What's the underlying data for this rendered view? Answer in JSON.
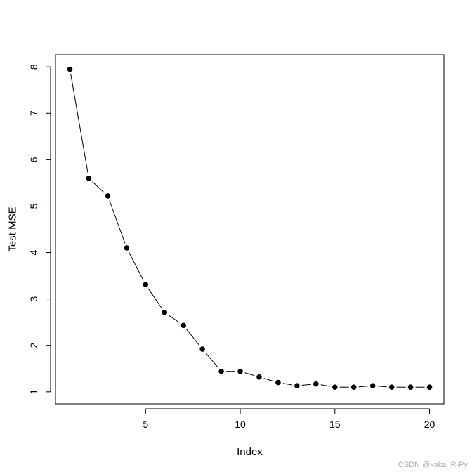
{
  "chart_data": {
    "type": "line",
    "xlabel": "Index",
    "ylabel": "Test MSE",
    "xlim": [
      0.24,
      20.76
    ],
    "ylim": [
      0.74,
      8.26
    ],
    "xticks": [
      5,
      10,
      15,
      20
    ],
    "yticks": [
      1,
      2,
      3,
      4,
      5,
      6,
      7,
      8
    ],
    "series": [
      {
        "x": [
          1,
          2,
          3,
          4,
          5,
          6,
          7,
          8,
          9,
          10,
          11,
          12,
          13,
          14,
          15,
          16,
          17,
          18,
          19,
          20
        ],
        "values": [
          7.95,
          5.6,
          5.22,
          4.1,
          3.31,
          2.71,
          2.43,
          1.92,
          1.44,
          1.44,
          1.32,
          1.2,
          1.13,
          1.17,
          1.1,
          1.1,
          1.13,
          1.1,
          1.1,
          1.1
        ]
      }
    ],
    "grid": false,
    "marker": "filled-circle",
    "line_color": "#000000"
  },
  "watermark": "CSDN @kaka_R-Py"
}
